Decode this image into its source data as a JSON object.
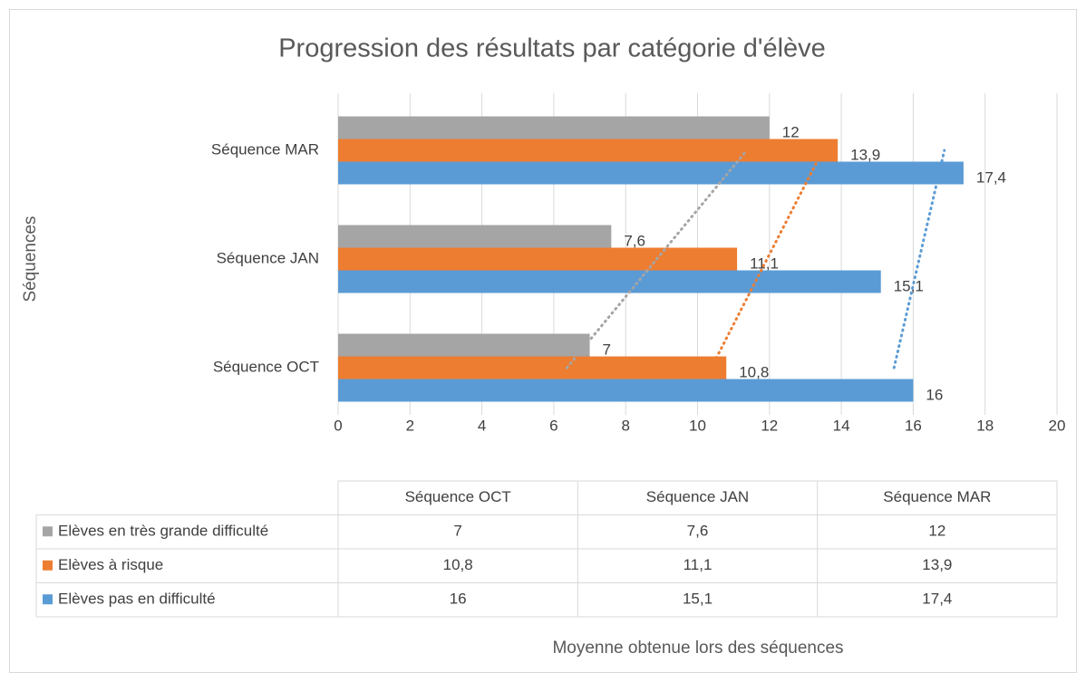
{
  "chart_data": {
    "type": "hbar",
    "title": "Progression des résultats par catégorie d'élève",
    "y_label": "Séquences",
    "x_label": "Moyenne obtenue lors des séquences",
    "categories": [
      "Séquence OCT",
      "Séquence JAN",
      "Séquence MAR"
    ],
    "series": [
      {
        "name": "Elèves en très grande difficulté",
        "color": "#a5a5a5",
        "values": [
          7,
          7.6,
          12
        ],
        "value_labels": [
          "7",
          "7,6",
          "12"
        ]
      },
      {
        "name": "Elèves à risque",
        "color": "#ed7d31",
        "values": [
          10.8,
          11.1,
          13.9
        ],
        "value_labels": [
          "10,8",
          "11,1",
          "13,9"
        ]
      },
      {
        "name": "Elèves pas en difficulté",
        "color": "#5b9bd5",
        "values": [
          16,
          15.1,
          17.4
        ],
        "value_labels": [
          "16",
          "15,1",
          "17,4"
        ]
      }
    ],
    "xlim": [
      0,
      20
    ],
    "xticks": [
      0,
      2,
      4,
      6,
      8,
      10,
      12,
      14,
      16,
      18,
      20
    ],
    "grid": true,
    "trendline": "linear",
    "data_table": true
  }
}
